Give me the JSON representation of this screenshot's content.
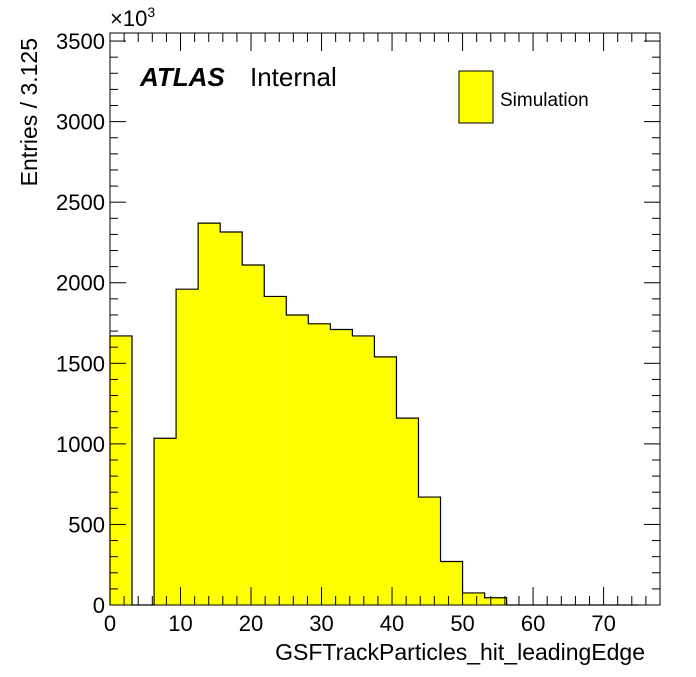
{
  "chart_data": {
    "type": "bar",
    "style": "histogram",
    "xlabel": "GSFTrackParticles_hit_leadingEdge",
    "ylabel": "Entries / 3.125",
    "y_multiplier": "×10",
    "y_multiplier_exp": "3",
    "atlas_label": "ATLAS",
    "atlas_status": "Internal",
    "xlim": [
      0,
      78
    ],
    "ylim": [
      0,
      3550
    ],
    "xticks": [
      0,
      10,
      20,
      30,
      40,
      50,
      60,
      70
    ],
    "yticks": [
      0,
      500,
      1000,
      1500,
      2000,
      2500,
      3000,
      3500
    ],
    "xtick_labels": [
      "0",
      "10",
      "20",
      "30",
      "40",
      "50",
      "60",
      "70"
    ],
    "ytick_labels": [
      "0",
      "500",
      "1000",
      "1500",
      "2000",
      "2500",
      "3000",
      "3500"
    ],
    "bin_width": 3.125,
    "bin_edges": [
      0,
      3.125,
      6.25,
      9.375,
      12.5,
      15.625,
      18.75,
      21.875,
      25,
      28.125,
      31.25,
      34.375,
      37.5,
      40.625,
      43.75,
      46.875,
      50,
      53.125,
      56.25,
      59.375,
      62.5,
      65.625,
      68.75,
      71.875,
      75
    ],
    "series": [
      {
        "name": "Simulation",
        "color": "#ffff00",
        "values": [
          1670,
          0,
          1035,
          1960,
          2370,
          2315,
          2110,
          1915,
          1800,
          1745,
          1710,
          1670,
          1540,
          1160,
          670,
          270,
          75,
          45,
          0,
          0,
          0,
          0,
          0,
          0
        ]
      }
    ],
    "legend": {
      "position": "top-right"
    },
    "grid": false
  }
}
